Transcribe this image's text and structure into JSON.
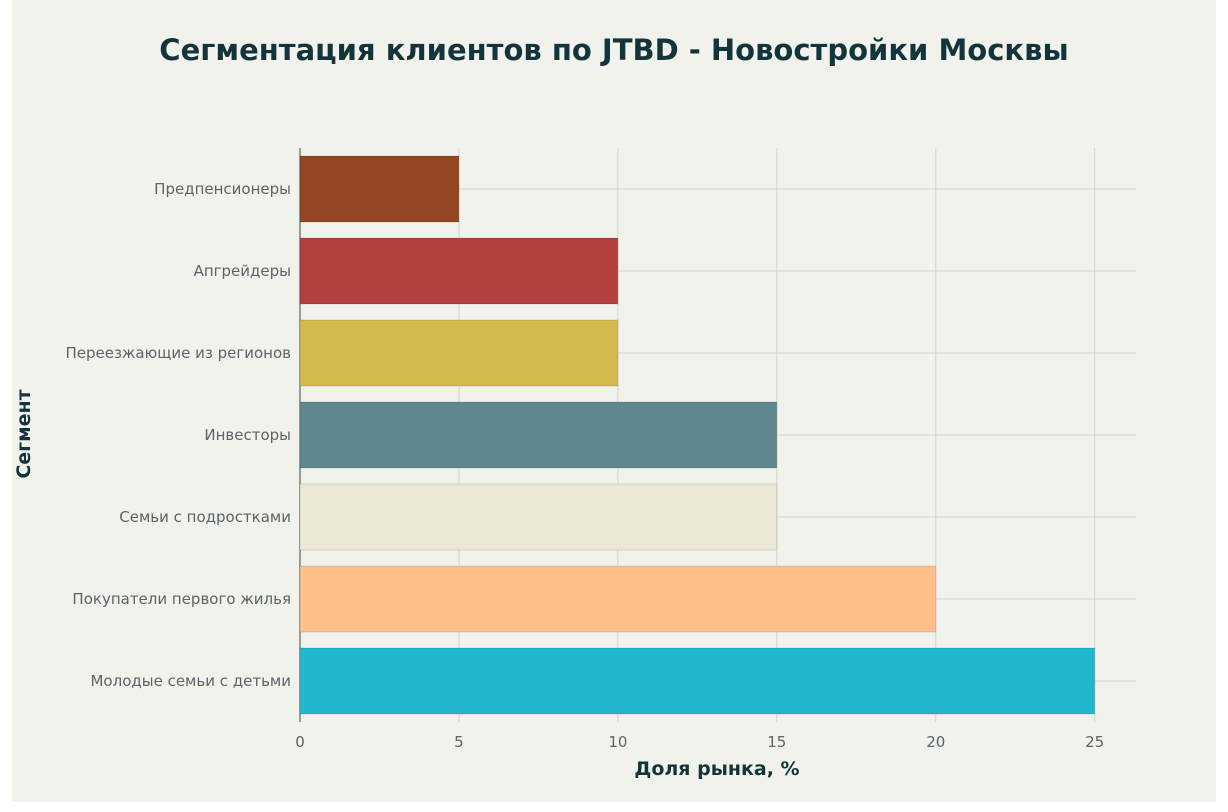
{
  "chart_data": {
    "type": "bar",
    "orientation": "horizontal",
    "title": "Сегментация клиентов по JTBD - Новостройки Москвы",
    "xlabel": "Доля рынка, %",
    "ylabel": "Сегмент",
    "xlim": [
      0,
      26.3
    ],
    "xticks": [
      0,
      5,
      10,
      15,
      20,
      25
    ],
    "grid": true,
    "categories": [
      "Предпенсионеры",
      "Апгрейдеры",
      "Переезжающие из регионов",
      "Инвесторы",
      "Семьи с подростками",
      "Покупатели первого жилья",
      "Молодые семьи с детьми"
    ],
    "values": [
      5,
      10,
      10,
      15,
      15,
      20,
      25
    ],
    "colors": [
      "#944523",
      "#b3403f",
      "#d4b94c",
      "#5e878e",
      "#ebe9d5",
      "#fec088",
      "#21b7cd"
    ]
  }
}
